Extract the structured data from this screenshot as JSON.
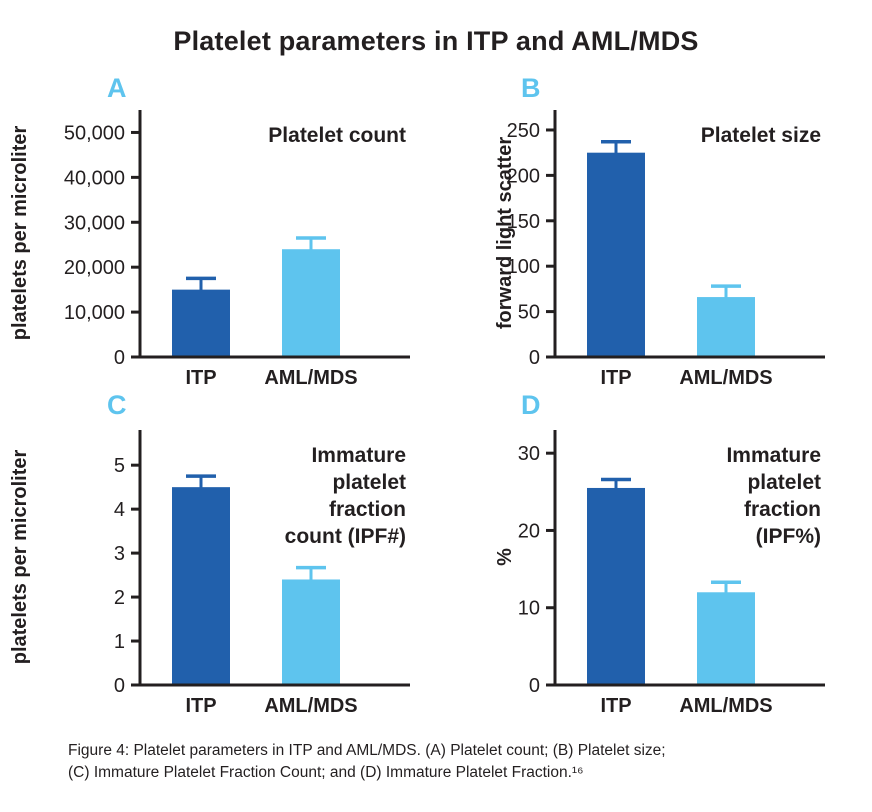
{
  "page": {
    "title": "Platelet parameters in ITP and AML/MDS"
  },
  "colors": {
    "dark_blue": "#2160ac",
    "light_blue": "#5ec4ee",
    "panel_letter": "#5ec4ee",
    "axis": "#231f20",
    "text": "#231f20"
  },
  "bar_colors": [
    "#2160ac",
    "#5ec4ee"
  ],
  "chart_data": [
    {
      "type": "bar",
      "panel": "A",
      "title_lines": [
        "Platelet count"
      ],
      "ylabel": "platelets per microliter",
      "categories": [
        "ITP",
        "AML/MDS"
      ],
      "values": [
        15000,
        24000
      ],
      "errors": [
        2500,
        2500
      ],
      "ylim": [
        0,
        55000
      ],
      "yticks": [
        0,
        10000,
        20000,
        30000,
        40000,
        50000
      ],
      "ytick_labels": [
        "0",
        "10,000",
        "20,000",
        "30,000",
        "40,000",
        "50,000"
      ],
      "grid": false,
      "legend": "none"
    },
    {
      "type": "bar",
      "panel": "B",
      "title_lines": [
        "Platelet size"
      ],
      "ylabel": "forward light scatter",
      "categories": [
        "ITP",
        "AML/MDS"
      ],
      "values": [
        225,
        66
      ],
      "errors": [
        12,
        12
      ],
      "ylim": [
        0,
        272
      ],
      "yticks": [
        0,
        50,
        100,
        150,
        200,
        250
      ],
      "ytick_labels": [
        "0",
        "50",
        "100",
        "150",
        "200",
        "250"
      ],
      "grid": false,
      "legend": "none"
    },
    {
      "type": "bar",
      "panel": "C",
      "title_lines": [
        "Immature",
        "platelet",
        "fraction",
        "count (IPF#)"
      ],
      "ylabel": "platelets per microliter",
      "categories": [
        "ITP",
        "AML/MDS"
      ],
      "values": [
        4.5,
        2.4
      ],
      "errors": [
        0.25,
        0.27
      ],
      "ylim": [
        0,
        5.8
      ],
      "yticks": [
        0,
        1,
        2,
        3,
        4,
        5
      ],
      "ytick_labels": [
        "0",
        "1",
        "2",
        "3",
        "4",
        "5"
      ],
      "grid": false,
      "legend": "none"
    },
    {
      "type": "bar",
      "panel": "D",
      "title_lines": [
        "Immature",
        "platelet",
        "fraction",
        "(IPF%)"
      ],
      "ylabel": "%",
      "categories": [
        "ITP",
        "AML/MDS"
      ],
      "values": [
        25.5,
        12
      ],
      "errors": [
        1.1,
        1.3
      ],
      "ylim": [
        0,
        33
      ],
      "yticks": [
        0,
        10,
        20,
        30
      ],
      "ytick_labels": [
        "0",
        "10",
        "20",
        "30"
      ],
      "grid": false,
      "legend": "none"
    }
  ],
  "caption": {
    "line1": "Figure 4:  Platelet parameters in ITP and AML/MDS.  (A) Platelet count; (B) Platelet size;",
    "line2": "(C) Immature Platelet Fraction Count; and (D) Immature Platelet Fraction.¹⁶"
  }
}
